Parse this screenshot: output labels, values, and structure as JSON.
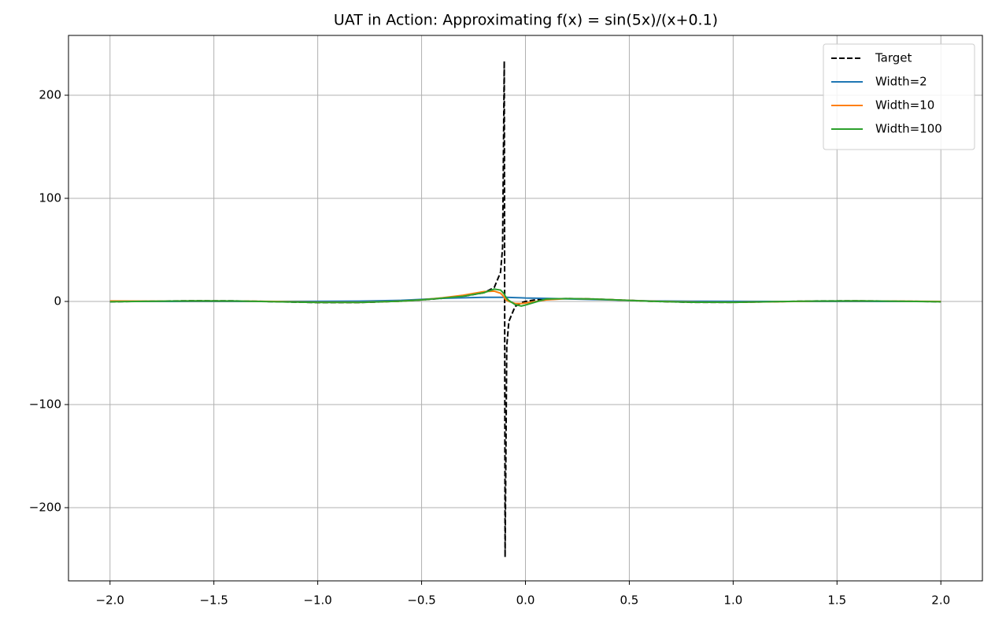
{
  "chart_data": {
    "type": "line",
    "title": "UAT in Action: Approximating f(x) = sin(5x)/(x+0.1)",
    "x": [
      -2.0,
      -1.8,
      -1.6,
      -1.4,
      -1.2,
      -1.0,
      -0.8,
      -0.6,
      -0.5,
      -0.4,
      -0.3,
      -0.2,
      -0.15,
      -0.12,
      -0.11,
      -0.102,
      -0.098,
      -0.09,
      -0.08,
      -0.05,
      -0.02,
      0,
      0.05,
      0.1,
      0.2,
      0.3,
      0.4,
      0.6,
      0.8,
      1.0,
      1.2,
      1.4,
      1.6,
      1.8,
      2.0
    ],
    "series": [
      {
        "name": "Target",
        "color": "#000000",
        "dashed": true,
        "values": [
          -0.29,
          0.24,
          0.66,
          0.51,
          -0.25,
          -1.07,
          -1.08,
          0.28,
          1.5,
          3.03,
          4.99,
          8.41,
          13.6,
          28.2,
          52.3,
          233,
          -248,
          -43.5,
          -19.5,
          -4.95,
          -1.25,
          0,
          1.65,
          2.4,
          2.8,
          2.49,
          1.82,
          0.2,
          -0.84,
          -0.87,
          -0.21,
          0.44,
          0.58,
          0.22,
          -0.26
        ]
      },
      {
        "name": "Width=2",
        "color": "#1f77b4",
        "dashed": false,
        "values": [
          0,
          0,
          0,
          0,
          0,
          0.1,
          0.3,
          1,
          2,
          3,
          3.5,
          4,
          4,
          4,
          4,
          4,
          4,
          4,
          3.9,
          3.7,
          3.5,
          3.3,
          3.1,
          2.9,
          2.5,
          2,
          1.5,
          0.5,
          0.2,
          0.1,
          0,
          0,
          0,
          0,
          0
        ]
      },
      {
        "name": "Width=10",
        "color": "#ff7f0e",
        "dashed": false,
        "values": [
          0.5,
          0.3,
          0.5,
          0.4,
          0,
          -0.8,
          -0.9,
          0.3,
          1.5,
          3.5,
          6,
          9.5,
          10,
          8,
          6,
          4,
          2.5,
          1,
          0,
          -2,
          -2,
          -1.5,
          0,
          1.5,
          2.8,
          2.5,
          1.8,
          0.3,
          -0.6,
          -0.8,
          -0.3,
          0.3,
          0.5,
          0.3,
          0
        ]
      },
      {
        "name": "Width=100",
        "color": "#2ca02c",
        "dashed": false,
        "values": [
          -0.3,
          0.2,
          0.6,
          0.5,
          -0.3,
          -1,
          -1,
          0.3,
          1.5,
          3.2,
          5,
          8.5,
          12,
          11,
          9,
          7,
          5.5,
          3,
          1,
          -3,
          -4.5,
          -3.5,
          -0.5,
          2.4,
          2.8,
          2.5,
          1.8,
          0.2,
          -0.8,
          -0.9,
          -0.2,
          0.4,
          0.6,
          0.2,
          -0.3
        ]
      }
    ],
    "xlim": [
      -2.2,
      2.2
    ],
    "ylim": [
      -271,
      258
    ],
    "xticks": [
      {
        "value": -2.0,
        "label": "−2.0"
      },
      {
        "value": -1.5,
        "label": "−1.5"
      },
      {
        "value": -1.0,
        "label": "−1.0"
      },
      {
        "value": -0.5,
        "label": "−0.5"
      },
      {
        "value": 0,
        "label": "0.0"
      },
      {
        "value": 0.5,
        "label": "0.5"
      },
      {
        "value": 1.0,
        "label": "1.0"
      },
      {
        "value": 1.5,
        "label": "1.5"
      },
      {
        "value": 2.0,
        "label": "2.0"
      }
    ],
    "yticks": [
      {
        "value": -200,
        "label": "−200"
      },
      {
        "value": -100,
        "label": "−100"
      },
      0,
      100,
      200
    ],
    "grid": true,
    "legend": "upper-right"
  }
}
